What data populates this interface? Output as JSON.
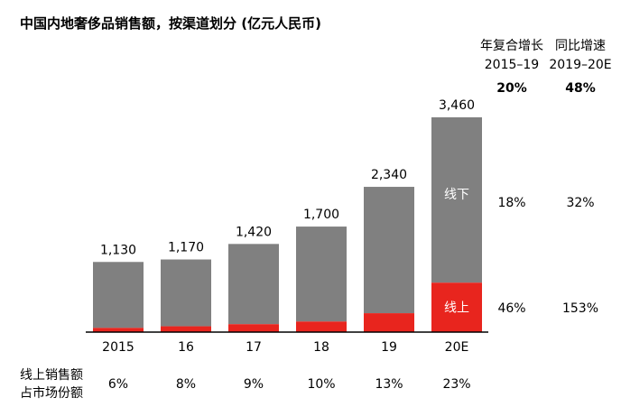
{
  "chart_data": {
    "type": "bar",
    "stacked": true,
    "title": "中国内地奢侈品销售额，按渠道划分 (亿元人民币)",
    "categories": [
      "2015",
      "16",
      "17",
      "18",
      "19",
      "20E"
    ],
    "totals": [
      "1,130",
      "1,170",
      "1,420",
      "1,700",
      "2,340",
      "3,460"
    ],
    "total_values": [
      1130,
      1170,
      1420,
      1700,
      2340,
      3460
    ],
    "online_share_pct": [
      6,
      8,
      9,
      10,
      13,
      23
    ],
    "online_share_labels": [
      "6%",
      "8%",
      "9%",
      "10%",
      "13%",
      "23%"
    ],
    "series": [
      {
        "name": "线上",
        "color": "#e8251e"
      },
      {
        "name": "线下",
        "color": "#808080"
      }
    ],
    "share_row_label": [
      "线上销售额",
      "占市场份额"
    ],
    "growth_table": {
      "headers": [
        {
          "line1": "年复合增长",
          "line2": "2015–19"
        },
        {
          "line1": "同比增速",
          "line2": "2019–20E"
        }
      ],
      "total_row": [
        "20%",
        "48%"
      ],
      "rows": [
        {
          "label": "线下",
          "values": [
            "18%",
            "32%"
          ]
        },
        {
          "label": "线上",
          "values": [
            "46%",
            "153%"
          ]
        }
      ]
    }
  }
}
